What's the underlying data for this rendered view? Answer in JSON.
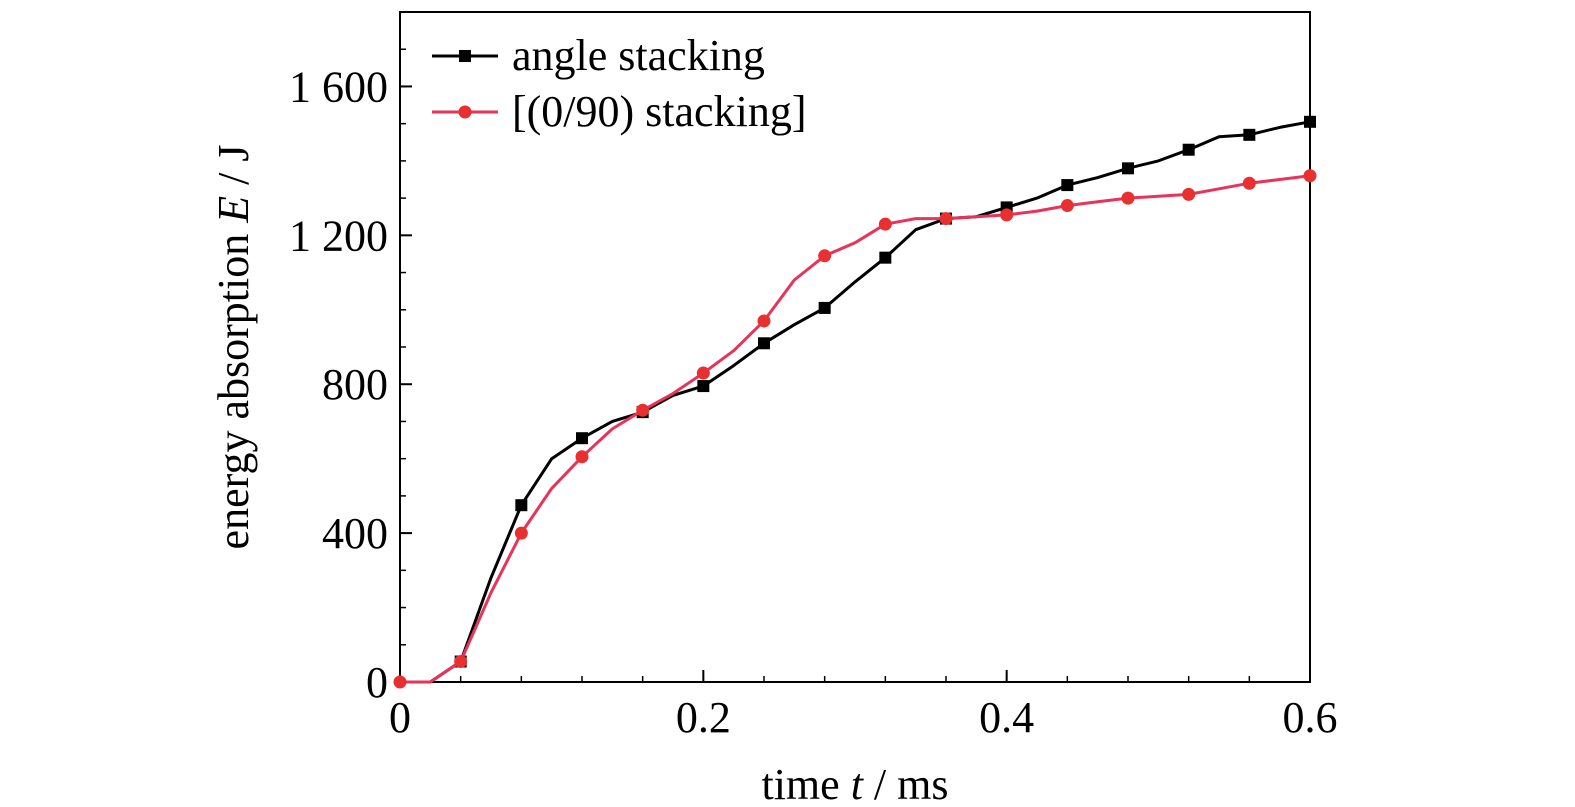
{
  "chart_data": {
    "type": "line",
    "title": "",
    "xlabel": {
      "pre": "time ",
      "var": "t",
      "post": " / ms"
    },
    "ylabel": {
      "pre": "energy absorption ",
      "var": "E",
      "post": " / J"
    },
    "xlim": [
      0,
      0.6
    ],
    "ylim": [
      0,
      1800
    ],
    "xticks": [
      0,
      0.2,
      0.4,
      0.6
    ],
    "xtick_labels": [
      "0",
      "0.2",
      "0.4",
      "0.6"
    ],
    "xminor_step": 0.04,
    "yticks": [
      0,
      400,
      800,
      1200,
      1600
    ],
    "ytick_labels": [
      "0",
      "400",
      "800",
      "1 200",
      "1 600"
    ],
    "yminor_step": 100,
    "grid": false,
    "legend_position": "top-left",
    "series": [
      {
        "name": "angle stacking",
        "color": "#000000",
        "marker": "square",
        "line": [
          [
            0,
            0
          ],
          [
            0.02,
            0
          ],
          [
            0.04,
            55
          ],
          [
            0.06,
            280
          ],
          [
            0.08,
            475
          ],
          [
            0.1,
            600
          ],
          [
            0.12,
            655
          ],
          [
            0.14,
            700
          ],
          [
            0.16,
            725
          ],
          [
            0.18,
            770
          ],
          [
            0.2,
            795
          ],
          [
            0.22,
            850
          ],
          [
            0.24,
            910
          ],
          [
            0.26,
            960
          ],
          [
            0.28,
            1005
          ],
          [
            0.3,
            1075
          ],
          [
            0.32,
            1140
          ],
          [
            0.34,
            1215
          ],
          [
            0.36,
            1245
          ],
          [
            0.38,
            1250
          ],
          [
            0.4,
            1275
          ],
          [
            0.42,
            1300
          ],
          [
            0.44,
            1335
          ],
          [
            0.46,
            1355
          ],
          [
            0.48,
            1380
          ],
          [
            0.5,
            1400
          ],
          [
            0.52,
            1430
          ],
          [
            0.54,
            1465
          ],
          [
            0.56,
            1470
          ],
          [
            0.58,
            1490
          ],
          [
            0.6,
            1505
          ]
        ],
        "markers": [
          [
            0.04,
            55
          ],
          [
            0.08,
            475
          ],
          [
            0.12,
            655
          ],
          [
            0.16,
            725
          ],
          [
            0.2,
            795
          ],
          [
            0.24,
            910
          ],
          [
            0.28,
            1005
          ],
          [
            0.32,
            1140
          ],
          [
            0.36,
            1245
          ],
          [
            0.4,
            1275
          ],
          [
            0.44,
            1335
          ],
          [
            0.48,
            1380
          ],
          [
            0.52,
            1430
          ],
          [
            0.56,
            1470
          ],
          [
            0.6,
            1505
          ]
        ]
      },
      {
        "name": "[(0/90) stacking]",
        "color": "#e8335a",
        "marker_color": "#e83030",
        "marker": "circle",
        "line": [
          [
            0,
            0
          ],
          [
            0.02,
            0
          ],
          [
            0.04,
            55
          ],
          [
            0.06,
            240
          ],
          [
            0.08,
            400
          ],
          [
            0.1,
            520
          ],
          [
            0.12,
            605
          ],
          [
            0.14,
            680
          ],
          [
            0.16,
            730
          ],
          [
            0.18,
            775
          ],
          [
            0.2,
            830
          ],
          [
            0.22,
            890
          ],
          [
            0.24,
            970
          ],
          [
            0.26,
            1080
          ],
          [
            0.28,
            1145
          ],
          [
            0.3,
            1180
          ],
          [
            0.32,
            1230
          ],
          [
            0.34,
            1245
          ],
          [
            0.36,
            1245
          ],
          [
            0.38,
            1250
          ],
          [
            0.4,
            1255
          ],
          [
            0.42,
            1265
          ],
          [
            0.44,
            1280
          ],
          [
            0.46,
            1290
          ],
          [
            0.48,
            1300
          ],
          [
            0.5,
            1305
          ],
          [
            0.52,
            1310
          ],
          [
            0.54,
            1325
          ],
          [
            0.56,
            1340
          ],
          [
            0.58,
            1350
          ],
          [
            0.6,
            1360
          ]
        ],
        "markers": [
          [
            0,
            0
          ],
          [
            0.04,
            55
          ],
          [
            0.08,
            400
          ],
          [
            0.12,
            605
          ],
          [
            0.16,
            730
          ],
          [
            0.2,
            830
          ],
          [
            0.24,
            970
          ],
          [
            0.28,
            1145
          ],
          [
            0.32,
            1230
          ],
          [
            0.36,
            1245
          ],
          [
            0.4,
            1255
          ],
          [
            0.44,
            1280
          ],
          [
            0.48,
            1300
          ],
          [
            0.52,
            1310
          ],
          [
            0.56,
            1340
          ],
          [
            0.6,
            1360
          ]
        ]
      }
    ]
  }
}
